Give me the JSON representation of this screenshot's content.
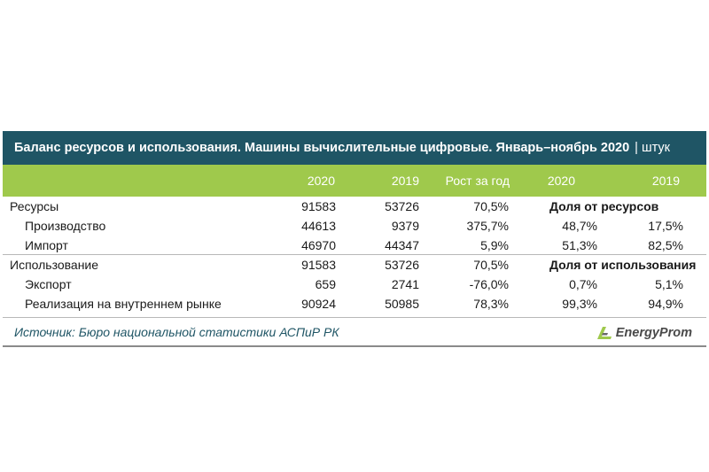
{
  "title": "Баланс ресурсов и использования. Машины вычислительные цифровые. Январь–ноябрь 2020",
  "unit": "| штук",
  "headers": {
    "y2020": "2020",
    "y2019": "2019",
    "growth": "Рост за год",
    "share2020": "2020",
    "share2019": "2019"
  },
  "rows": [
    {
      "label": "Ресурсы",
      "y2020": "91583",
      "y2019": "53726",
      "growth": "70,5%",
      "share_label": "Доля от ресурсов"
    },
    {
      "label": "Производство",
      "y2020": "44613",
      "y2019": "9379",
      "growth": "375,7%",
      "share2020": "48,7%",
      "share2019": "17,5%"
    },
    {
      "label": "Импорт",
      "y2020": "46970",
      "y2019": "44347",
      "growth": "5,9%",
      "share2020": "51,3%",
      "share2019": "82,5%"
    },
    {
      "label": "Использование",
      "y2020": "91583",
      "y2019": "53726",
      "growth": "70,5%",
      "share_label": "Доля от использования"
    },
    {
      "label": "Экспорт",
      "y2020": "659",
      "y2019": "2741",
      "growth": "-76,0%",
      "share2020": "0,7%",
      "share2019": "5,1%"
    },
    {
      "label": "Реализация на внутреннем рынке",
      "y2020": "90924",
      "y2019": "50985",
      "growth": "78,3%",
      "share2020": "99,3%",
      "share2019": "94,9%"
    }
  ],
  "source": "Источник: Бюро национальной статистики АСПиР РК",
  "logo": {
    "text": "EnergyProm",
    "icon": "energyprom-logo-icon",
    "color": "#9fc94c"
  },
  "colors": {
    "title_bg": "#1f5565",
    "header_bg": "#9fc94c"
  }
}
